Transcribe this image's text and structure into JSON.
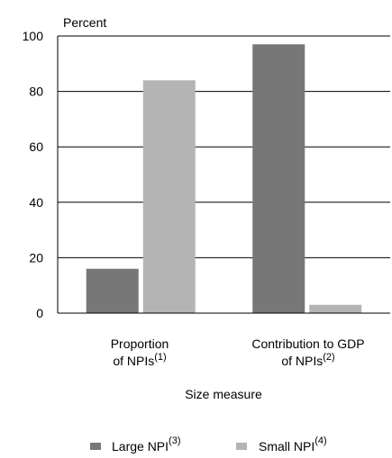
{
  "chart_data": {
    "type": "bar",
    "ylabel": "Percent",
    "xlabel": "Size measure",
    "ylim": [
      0,
      100
    ],
    "yticks": [
      0,
      20,
      40,
      60,
      80,
      100
    ],
    "grid": true,
    "legend_position": "bottom",
    "categories": [
      {
        "line1": "Proportion",
        "line2": "of NPIs",
        "note": "(1)"
      },
      {
        "line1": "Contribution to GDP",
        "line2": "of NPIs",
        "note": "(2)"
      }
    ],
    "series": [
      {
        "name": "Large NPI",
        "note": "(3)",
        "color": "#777777",
        "values": [
          16,
          97
        ]
      },
      {
        "name": "Small NPI",
        "note": "(4)",
        "color": "#b4b4b4",
        "values": [
          84,
          3
        ]
      }
    ]
  }
}
